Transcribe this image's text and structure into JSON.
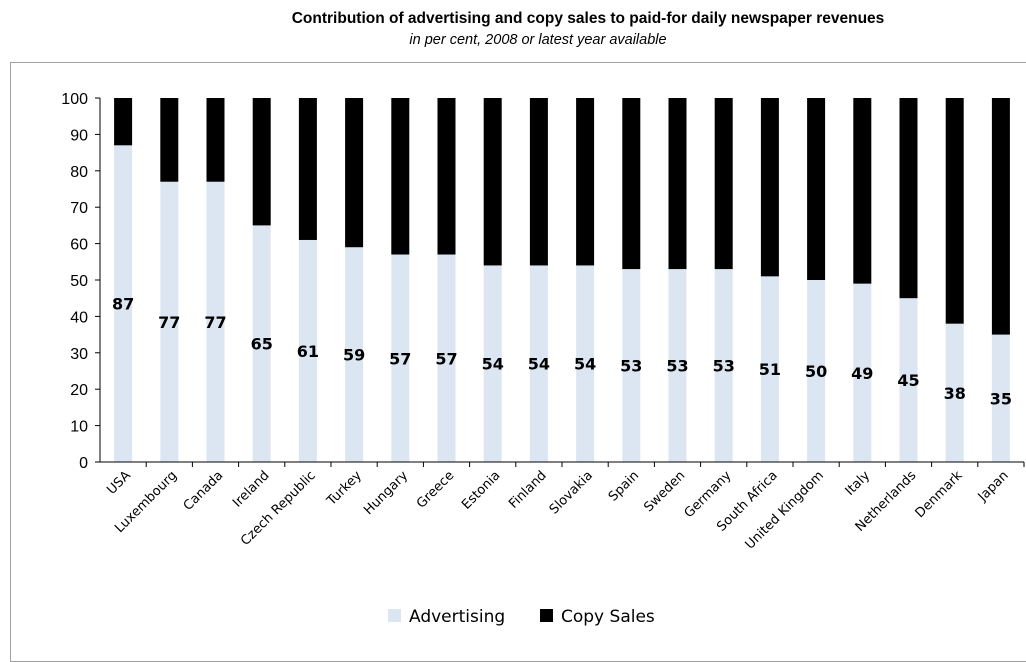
{
  "chart_data": {
    "type": "bar",
    "stacked": true,
    "title": "Contribution of advertising and copy sales to paid-for daily newspaper revenues",
    "subtitle": "in per cent, 2008 or latest year available",
    "categories": [
      "USA",
      "Luxembourg",
      "Canada",
      "Ireland",
      "Czech Republic",
      "Turkey",
      "Hungary",
      "Greece",
      "Estonia",
      "Finland",
      "Slovakia",
      "Spain",
      "Sweden",
      "Germany",
      "South Africa",
      "United Kingdom",
      "Italy",
      "Netherlands",
      "Denmark",
      "Japan"
    ],
    "series": [
      {
        "name": "Advertising",
        "color": "#dce6f2",
        "values": [
          87,
          77,
          77,
          65,
          61,
          59,
          57,
          57,
          54,
          54,
          54,
          53,
          53,
          53,
          51,
          50,
          49,
          45,
          38,
          35
        ]
      },
      {
        "name": "Copy Sales",
        "color": "#000000",
        "values": [
          13,
          23,
          23,
          35,
          39,
          41,
          43,
          43,
          46,
          46,
          46,
          47,
          47,
          47,
          49,
          50,
          51,
          55,
          62,
          65
        ]
      }
    ],
    "data_labels": [
      "87",
      "77",
      "77",
      "65",
      "61",
      "59",
      "57",
      "57",
      "54",
      "54",
      "54",
      "53",
      "53",
      "53",
      "51",
      "50",
      "49",
      "45",
      "38",
      "35"
    ],
    "ylim": [
      0,
      100
    ],
    "yticks": [
      "0",
      "10",
      "20",
      "30",
      "40",
      "50",
      "60",
      "70",
      "80",
      "90",
      "100"
    ],
    "legend_position": "bottom",
    "grid": false
  }
}
